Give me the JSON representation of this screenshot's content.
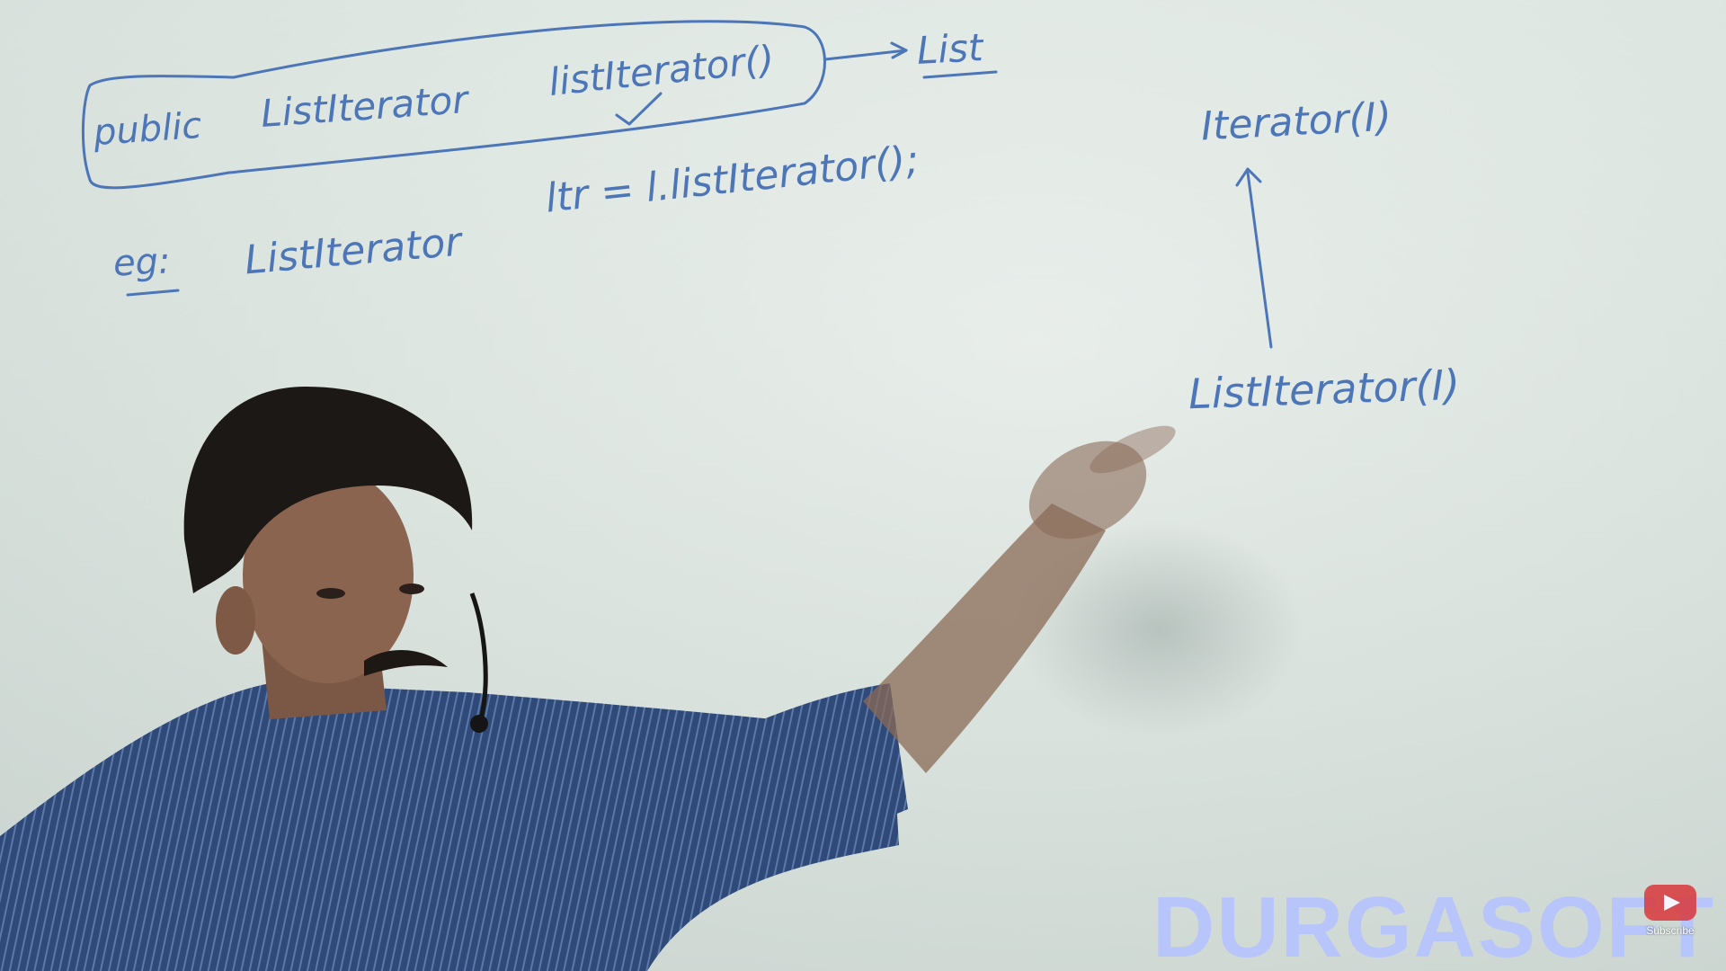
{
  "whiteboard": {
    "line1": {
      "modifier": "public",
      "return_type": "ListIterator",
      "method": "listIterator()",
      "arrow_target": "List"
    },
    "line2": {
      "prefix": "eg:",
      "type": "ListIterator",
      "statement": "ltr = l.listIterator();"
    },
    "hierarchy": {
      "parent": "Iterator(I)",
      "child": "ListIterator(I)"
    }
  },
  "watermark": {
    "brand": "DURGASOFT"
  },
  "subscribe": {
    "label": "Subscribe"
  },
  "colors": {
    "marker_ink": "#4d76b8",
    "board": "#dfe7e2",
    "watermark": "#b5c4ff",
    "subscribe_red": "#d9373b"
  }
}
